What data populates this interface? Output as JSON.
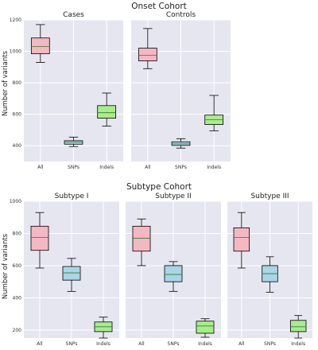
{
  "figure": {
    "ylabel": "Number of variants",
    "colors": {
      "panel_bg": "#e6e6f0",
      "grid": "#ffffff",
      "median": "#2e7d32",
      "whisker": "#000000"
    }
  },
  "chart_data": [
    {
      "type": "boxplot",
      "group": "Onset Cohort",
      "title": "Cases",
      "categories": [
        "All",
        "SNPs",
        "Indels"
      ],
      "colors": [
        "#f4b8c3",
        "#a9d5e4",
        "#a8ec8c"
      ],
      "ylim": [
        300,
        1200
      ],
      "yticks": [
        400,
        600,
        800,
        1000,
        1200
      ],
      "boxes": [
        {
          "category": "All",
          "whislo": 930,
          "q1": 985,
          "med": 1030,
          "q3": 1085,
          "whishi": 1170
        },
        {
          "category": "SNPs",
          "whislo": 395,
          "q1": 410,
          "med": 422,
          "q3": 432,
          "whishi": 455
        },
        {
          "category": "Indels",
          "whislo": 525,
          "q1": 575,
          "med": 610,
          "q3": 655,
          "whishi": 735
        }
      ]
    },
    {
      "type": "boxplot",
      "group": "Onset Cohort",
      "title": "Controls",
      "categories": [
        "All",
        "SNPs",
        "Indels"
      ],
      "colors": [
        "#f4b8c3",
        "#a9d5e4",
        "#a8ec8c"
      ],
      "ylim": [
        300,
        1200
      ],
      "yticks": [
        400,
        600,
        800,
        1000,
        1200
      ],
      "boxes": [
        {
          "category": "All",
          "whislo": 890,
          "q1": 940,
          "med": 975,
          "q3": 1020,
          "whishi": 1145
        },
        {
          "category": "SNPs",
          "whislo": 385,
          "q1": 402,
          "med": 412,
          "q3": 425,
          "whishi": 445
        },
        {
          "category": "Indels",
          "whislo": 495,
          "q1": 535,
          "med": 565,
          "q3": 595,
          "whishi": 720
        }
      ]
    },
    {
      "type": "boxplot",
      "group": "Subtype Cohort",
      "title": "Subtype I",
      "categories": [
        "All",
        "SNPs",
        "Indels"
      ],
      "colors": [
        "#f4b8c3",
        "#a9d5e4",
        "#a8ec8c"
      ],
      "ylim": [
        150,
        1000
      ],
      "yticks": [
        200,
        400,
        600,
        800,
        1000
      ],
      "boxes": [
        {
          "category": "All",
          "whislo": 585,
          "q1": 695,
          "med": 775,
          "q3": 845,
          "whishi": 930
        },
        {
          "category": "SNPs",
          "whislo": 440,
          "q1": 510,
          "med": 555,
          "q3": 595,
          "whishi": 645
        },
        {
          "category": "Indels",
          "whislo": 150,
          "q1": 190,
          "med": 220,
          "q3": 250,
          "whishi": 280
        }
      ]
    },
    {
      "type": "boxplot",
      "group": "Subtype Cohort",
      "title": "Subtype II",
      "categories": [
        "All",
        "SNPs",
        "Indels"
      ],
      "colors": [
        "#f4b8c3",
        "#a9d5e4",
        "#a8ec8c"
      ],
      "ylim": [
        150,
        1000
      ],
      "yticks": [
        200,
        400,
        600,
        800,
        1000
      ],
      "boxes": [
        {
          "category": "All",
          "whislo": 600,
          "q1": 690,
          "med": 770,
          "q3": 845,
          "whishi": 890
        },
        {
          "category": "SNPs",
          "whislo": 440,
          "q1": 500,
          "med": 545,
          "q3": 600,
          "whishi": 625
        },
        {
          "category": "Indels",
          "whislo": 155,
          "q1": 180,
          "med": 225,
          "q3": 255,
          "whishi": 270
        }
      ]
    },
    {
      "type": "boxplot",
      "group": "Subtype Cohort",
      "title": "Subtype III",
      "categories": [
        "All",
        "SNPs",
        "Indels"
      ],
      "colors": [
        "#f4b8c3",
        "#a9d5e4",
        "#a8ec8c"
      ],
      "ylim": [
        150,
        1000
      ],
      "yticks": [
        200,
        400,
        600,
        800,
        1000
      ],
      "boxes": [
        {
          "category": "All",
          "whislo": 585,
          "q1": 690,
          "med": 775,
          "q3": 835,
          "whishi": 930
        },
        {
          "category": "SNPs",
          "whislo": 435,
          "q1": 500,
          "med": 550,
          "q3": 600,
          "whishi": 655
        },
        {
          "category": "Indels",
          "whislo": 150,
          "q1": 190,
          "med": 220,
          "q3": 260,
          "whishi": 290
        }
      ]
    }
  ]
}
